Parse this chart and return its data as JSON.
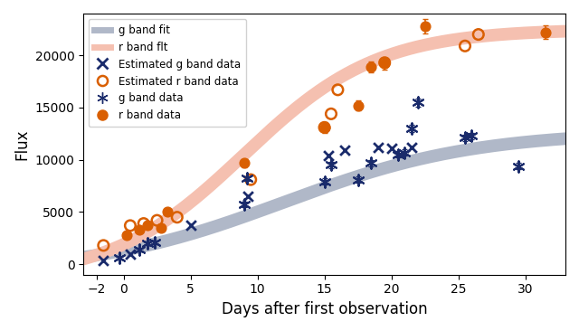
{
  "title": "",
  "xlabel": "Days after first observation",
  "ylabel": "Flux",
  "xlim": [
    -3,
    33
  ],
  "ylim": [
    -1000,
    24000
  ],
  "g_fit_color": "#b0b8c8",
  "r_fit_color": "#f5c0b0",
  "g_fit_alpha": 1.0,
  "r_fit_alpha": 1.0,
  "fit_lw": 10,
  "g_data_color": "#1a2b6b",
  "r_data_color": "#d95f02",
  "g_band_data_x": [
    -0.3,
    1.2,
    1.8,
    2.3,
    9.0,
    9.2,
    15.0,
    15.5,
    17.5,
    18.5,
    20.5,
    21.0,
    21.5,
    22.0,
    25.5,
    26.0,
    29.5
  ],
  "g_band_data_y": [
    600,
    1400,
    2000,
    2100,
    5700,
    8200,
    7900,
    9500,
    8100,
    9700,
    10500,
    10700,
    13000,
    15500,
    12100,
    12300,
    9400
  ],
  "g_band_data_yerr": [
    150,
    200,
    200,
    200,
    250,
    250,
    300,
    300,
    300,
    300,
    300,
    300,
    350,
    400,
    300,
    300,
    300
  ],
  "r_band_data_x": [
    0.2,
    1.2,
    1.8,
    2.8,
    3.3,
    9.0,
    15.0,
    17.5,
    18.5,
    19.5,
    22.5,
    31.5
  ],
  "r_band_data_y": [
    2800,
    3300,
    3700,
    3500,
    5000,
    9700,
    13100,
    15200,
    18900,
    19200,
    22800,
    22200
  ],
  "r_band_data_yerr": [
    280,
    280,
    280,
    280,
    300,
    400,
    500,
    500,
    550,
    550,
    700,
    650
  ],
  "g_est_x": [
    -1.5,
    0.5,
    5.0,
    9.3,
    15.3,
    16.5,
    19.0,
    20.0,
    21.5
  ],
  "g_est_y": [
    400,
    1000,
    3700,
    6500,
    10400,
    10900,
    11200,
    11100,
    11200
  ],
  "r_est_x": [
    -1.5,
    0.5,
    1.5,
    2.5,
    4.0,
    9.5,
    15.0,
    15.5,
    16.0,
    19.5,
    25.5,
    26.5
  ],
  "r_est_y": [
    1800,
    3700,
    3900,
    4200,
    4500,
    8100,
    13100,
    14400,
    16700,
    19300,
    20900,
    22000
  ],
  "xticks": [
    -2,
    0,
    5,
    10,
    15,
    20,
    25,
    30
  ],
  "yticks": [
    0,
    5000,
    10000,
    15000,
    20000
  ],
  "g_fit_params": [
    13500,
    0.14,
    12,
    -800
  ],
  "r_fit_params": [
    24000,
    0.2,
    9,
    -1500
  ]
}
